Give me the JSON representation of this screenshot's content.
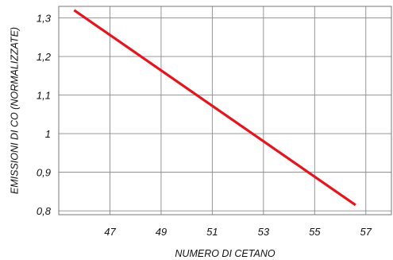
{
  "chart_data": {
    "type": "line",
    "title": "",
    "xlabel": "NUMERO DI CETANO",
    "ylabel": "EMISSIONI DI CO (NORMALIZZATE)",
    "xlim": [
      45.0,
      58.0
    ],
    "ylim": [
      0.79,
      1.33
    ],
    "x_ticks": [
      47,
      49,
      51,
      53,
      55,
      57
    ],
    "x_tick_labels": [
      "47",
      "49",
      "51",
      "53",
      "55",
      "57"
    ],
    "y_ticks": [
      0.8,
      0.9,
      1.0,
      1.1,
      1.2,
      1.3
    ],
    "y_tick_labels": [
      "0,8",
      "0,9",
      "1",
      "1,1",
      "1,2",
      "1,3"
    ],
    "grid": true,
    "series": [
      {
        "name": "",
        "color": "#e8141b",
        "x": [
          45.6,
          56.6
        ],
        "y": [
          1.32,
          0.815
        ]
      }
    ]
  }
}
